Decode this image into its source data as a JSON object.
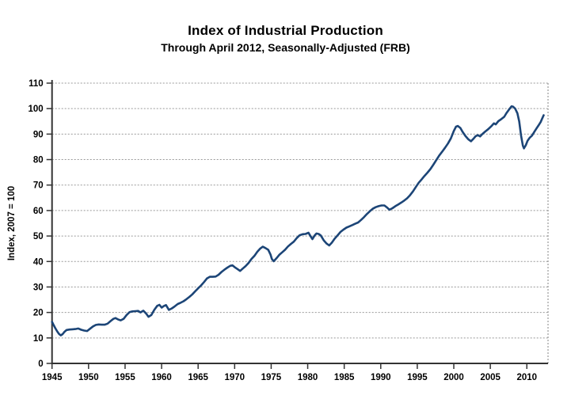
{
  "chart": {
    "title": "Index of Industrial Production",
    "subtitle": "Through April 2012, Seasonally-Adjusted (FRB)",
    "y_axis_title": "Index, 2007 = 100"
  },
  "chart_data": {
    "type": "line",
    "title": "Index of Industrial Production",
    "subtitle": "Through April 2012, Seasonally-Adjusted (FRB)",
    "xlabel": "",
    "ylabel": "Index, 2007 = 100",
    "xlim": [
      1945,
      2012.9
    ],
    "ylim": [
      0,
      110
    ],
    "x_ticks": [
      1945,
      1950,
      1955,
      1960,
      1965,
      1970,
      1975,
      1980,
      1985,
      1990,
      1995,
      2000,
      2005,
      2010
    ],
    "y_ticks": [
      0,
      10,
      20,
      30,
      40,
      50,
      60,
      70,
      80,
      90,
      100,
      110
    ],
    "grid": "horizontal-dashed",
    "legend": "none",
    "line_color": "#1c4577",
    "grid_color": "#999999",
    "axis_color": "#333333",
    "series": [
      {
        "name": "Industrial Production Index (2007 = 100)",
        "points": [
          [
            1945.0,
            16.3
          ],
          [
            1945.2,
            15.2
          ],
          [
            1945.45,
            13.8
          ],
          [
            1945.7,
            12.6
          ],
          [
            1945.95,
            11.6
          ],
          [
            1946.2,
            11.0
          ],
          [
            1946.45,
            11.5
          ],
          [
            1946.7,
            12.4
          ],
          [
            1947.0,
            13.1
          ],
          [
            1947.4,
            13.3
          ],
          [
            1947.8,
            13.4
          ],
          [
            1948.2,
            13.5
          ],
          [
            1948.6,
            13.7
          ],
          [
            1949.0,
            13.2
          ],
          [
            1949.4,
            12.9
          ],
          [
            1949.8,
            12.7
          ],
          [
            1950.2,
            13.6
          ],
          [
            1950.6,
            14.5
          ],
          [
            1951.0,
            15.1
          ],
          [
            1951.4,
            15.3
          ],
          [
            1951.8,
            15.2
          ],
          [
            1952.2,
            15.2
          ],
          [
            1952.6,
            15.6
          ],
          [
            1953.0,
            16.6
          ],
          [
            1953.4,
            17.5
          ],
          [
            1953.7,
            17.8
          ],
          [
            1954.0,
            17.3
          ],
          [
            1954.4,
            16.9
          ],
          [
            1954.8,
            17.5
          ],
          [
            1955.2,
            19.0
          ],
          [
            1955.6,
            20.1
          ],
          [
            1956.0,
            20.4
          ],
          [
            1956.4,
            20.5
          ],
          [
            1956.8,
            20.6
          ],
          [
            1957.1,
            20.0
          ],
          [
            1957.5,
            20.7
          ],
          [
            1957.9,
            19.5
          ],
          [
            1958.2,
            18.3
          ],
          [
            1958.6,
            19.0
          ],
          [
            1959.0,
            21.0
          ],
          [
            1959.4,
            22.6
          ],
          [
            1959.7,
            23.0
          ],
          [
            1960.0,
            21.9
          ],
          [
            1960.3,
            22.5
          ],
          [
            1960.6,
            22.9
          ],
          [
            1961.0,
            21.0
          ],
          [
            1961.4,
            21.6
          ],
          [
            1961.8,
            22.4
          ],
          [
            1962.2,
            23.3
          ],
          [
            1962.6,
            23.8
          ],
          [
            1963.0,
            24.4
          ],
          [
            1963.4,
            25.2
          ],
          [
            1963.8,
            26.1
          ],
          [
            1964.2,
            27.1
          ],
          [
            1964.6,
            28.3
          ],
          [
            1965.0,
            29.5
          ],
          [
            1965.4,
            30.6
          ],
          [
            1965.8,
            31.9
          ],
          [
            1966.2,
            33.3
          ],
          [
            1966.6,
            34.0
          ],
          [
            1967.0,
            34.0
          ],
          [
            1967.4,
            34.1
          ],
          [
            1967.8,
            34.8
          ],
          [
            1968.2,
            35.9
          ],
          [
            1968.6,
            36.8
          ],
          [
            1969.0,
            37.6
          ],
          [
            1969.4,
            38.3
          ],
          [
            1969.7,
            38.5
          ],
          [
            1970.0,
            37.8
          ],
          [
            1970.4,
            37.0
          ],
          [
            1970.75,
            36.3
          ],
          [
            1971.1,
            37.2
          ],
          [
            1971.5,
            38.2
          ],
          [
            1971.9,
            39.4
          ],
          [
            1972.3,
            41.0
          ],
          [
            1972.7,
            42.2
          ],
          [
            1973.1,
            43.8
          ],
          [
            1973.5,
            45.1
          ],
          [
            1973.85,
            45.8
          ],
          [
            1974.2,
            45.3
          ],
          [
            1974.6,
            44.6
          ],
          [
            1974.9,
            42.8
          ],
          [
            1975.1,
            41.0
          ],
          [
            1975.35,
            40.1
          ],
          [
            1975.7,
            41.2
          ],
          [
            1976.1,
            42.6
          ],
          [
            1976.5,
            43.6
          ],
          [
            1976.9,
            44.6
          ],
          [
            1977.3,
            45.9
          ],
          [
            1977.7,
            46.9
          ],
          [
            1978.1,
            47.8
          ],
          [
            1978.5,
            49.2
          ],
          [
            1978.9,
            50.3
          ],
          [
            1979.3,
            50.7
          ],
          [
            1979.7,
            50.8
          ],
          [
            1980.1,
            51.3
          ],
          [
            1980.4,
            49.9
          ],
          [
            1980.65,
            48.8
          ],
          [
            1980.95,
            50.2
          ],
          [
            1981.2,
            51.0
          ],
          [
            1981.5,
            50.8
          ],
          [
            1981.8,
            50.2
          ],
          [
            1982.2,
            48.3
          ],
          [
            1982.6,
            47.0
          ],
          [
            1982.95,
            46.3
          ],
          [
            1983.3,
            47.4
          ],
          [
            1983.7,
            49.0
          ],
          [
            1984.1,
            50.3
          ],
          [
            1984.5,
            51.6
          ],
          [
            1984.9,
            52.5
          ],
          [
            1985.3,
            53.3
          ],
          [
            1985.7,
            53.8
          ],
          [
            1986.1,
            54.3
          ],
          [
            1986.5,
            54.8
          ],
          [
            1986.9,
            55.3
          ],
          [
            1987.3,
            56.3
          ],
          [
            1987.7,
            57.4
          ],
          [
            1988.1,
            58.6
          ],
          [
            1988.5,
            59.7
          ],
          [
            1988.9,
            60.7
          ],
          [
            1989.3,
            61.3
          ],
          [
            1989.7,
            61.7
          ],
          [
            1990.1,
            62.0
          ],
          [
            1990.5,
            62.0
          ],
          [
            1990.9,
            61.1
          ],
          [
            1991.2,
            60.3
          ],
          [
            1991.6,
            60.9
          ],
          [
            1992.0,
            61.7
          ],
          [
            1992.4,
            62.4
          ],
          [
            1992.8,
            63.1
          ],
          [
            1993.2,
            63.9
          ],
          [
            1993.6,
            64.8
          ],
          [
            1994.0,
            66.0
          ],
          [
            1994.4,
            67.5
          ],
          [
            1994.8,
            69.2
          ],
          [
            1995.2,
            70.9
          ],
          [
            1995.6,
            72.2
          ],
          [
            1996.0,
            73.6
          ],
          [
            1996.4,
            74.9
          ],
          [
            1996.8,
            76.3
          ],
          [
            1997.2,
            78.0
          ],
          [
            1997.6,
            79.8
          ],
          [
            1998.0,
            81.6
          ],
          [
            1998.4,
            83.1
          ],
          [
            1998.8,
            84.6
          ],
          [
            1999.2,
            86.3
          ],
          [
            1999.6,
            88.3
          ],
          [
            2000.0,
            91.2
          ],
          [
            2000.3,
            92.9
          ],
          [
            2000.55,
            93.2
          ],
          [
            2000.9,
            92.4
          ],
          [
            2001.2,
            90.9
          ],
          [
            2001.6,
            89.2
          ],
          [
            2002.0,
            87.9
          ],
          [
            2002.35,
            87.2
          ],
          [
            2002.7,
            88.2
          ],
          [
            2003.0,
            89.2
          ],
          [
            2003.3,
            89.6
          ],
          [
            2003.6,
            89.1
          ],
          [
            2003.9,
            90.0
          ],
          [
            2004.3,
            91.0
          ],
          [
            2004.7,
            91.9
          ],
          [
            2005.1,
            93.0
          ],
          [
            2005.5,
            94.2
          ],
          [
            2005.75,
            93.8
          ],
          [
            2006.1,
            95.1
          ],
          [
            2006.5,
            95.9
          ],
          [
            2006.9,
            96.8
          ],
          [
            2007.2,
            98.2
          ],
          [
            2007.5,
            99.4
          ],
          [
            2007.9,
            100.9
          ],
          [
            2008.1,
            100.8
          ],
          [
            2008.4,
            100.0
          ],
          [
            2008.7,
            98.2
          ],
          [
            2008.95,
            95.0
          ],
          [
            2009.2,
            89.5
          ],
          [
            2009.45,
            85.5
          ],
          [
            2009.6,
            84.4
          ],
          [
            2009.85,
            85.6
          ],
          [
            2010.1,
            87.4
          ],
          [
            2010.4,
            88.6
          ],
          [
            2010.7,
            89.4
          ],
          [
            2011.0,
            90.8
          ],
          [
            2011.3,
            92.1
          ],
          [
            2011.6,
            93.4
          ],
          [
            2011.9,
            94.8
          ],
          [
            2012.1,
            96.1
          ],
          [
            2012.3,
            97.4
          ]
        ]
      }
    ]
  }
}
